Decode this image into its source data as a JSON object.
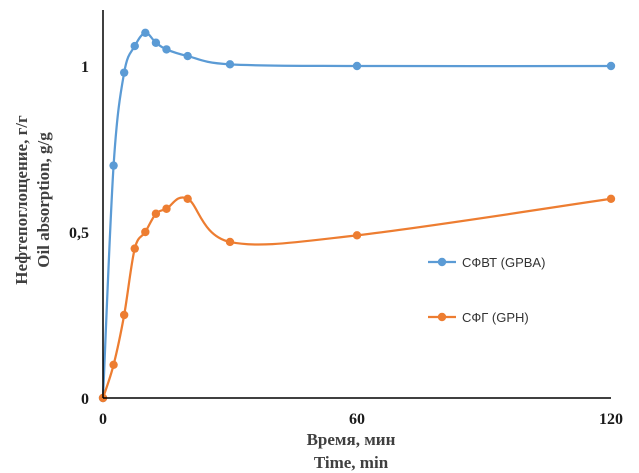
{
  "chart_data": {
    "type": "line",
    "title": "",
    "xlabel": [
      "Время, мин",
      "Time, min"
    ],
    "ylabel": [
      "Нефтепоглощение, г/г",
      "Oil absorption, g/g"
    ],
    "xlim": [
      0,
      120
    ],
    "ylim": [
      0,
      1.2
    ],
    "x_ticks": [
      0,
      60,
      120
    ],
    "x_tick_labels": [
      "0",
      "60",
      "120"
    ],
    "y_ticks": [
      0,
      0.5,
      1
    ],
    "y_tick_labels": [
      "0",
      "0,5",
      "1"
    ],
    "grid": false,
    "smooth": true,
    "legend_position": "right",
    "series": [
      {
        "name": "СФВТ (GPBA)",
        "color": "#5b9bd5",
        "x": [
          0,
          2.5,
          5,
          7.5,
          10,
          12.5,
          15,
          20,
          30,
          60,
          120
        ],
        "y": [
          0,
          0.7,
          0.98,
          1.06,
          1.1,
          1.07,
          1.05,
          1.03,
          1.005,
          1.0,
          1.0
        ]
      },
      {
        "name": "СФГ (GPH)",
        "color": "#ed7d31",
        "x": [
          0,
          2.5,
          5,
          7.5,
          10,
          12.5,
          15,
          20,
          30,
          60,
          120
        ],
        "y": [
          0,
          0.1,
          0.25,
          0.45,
          0.5,
          0.555,
          0.57,
          0.6,
          0.47,
          0.49,
          0.6
        ]
      }
    ]
  }
}
